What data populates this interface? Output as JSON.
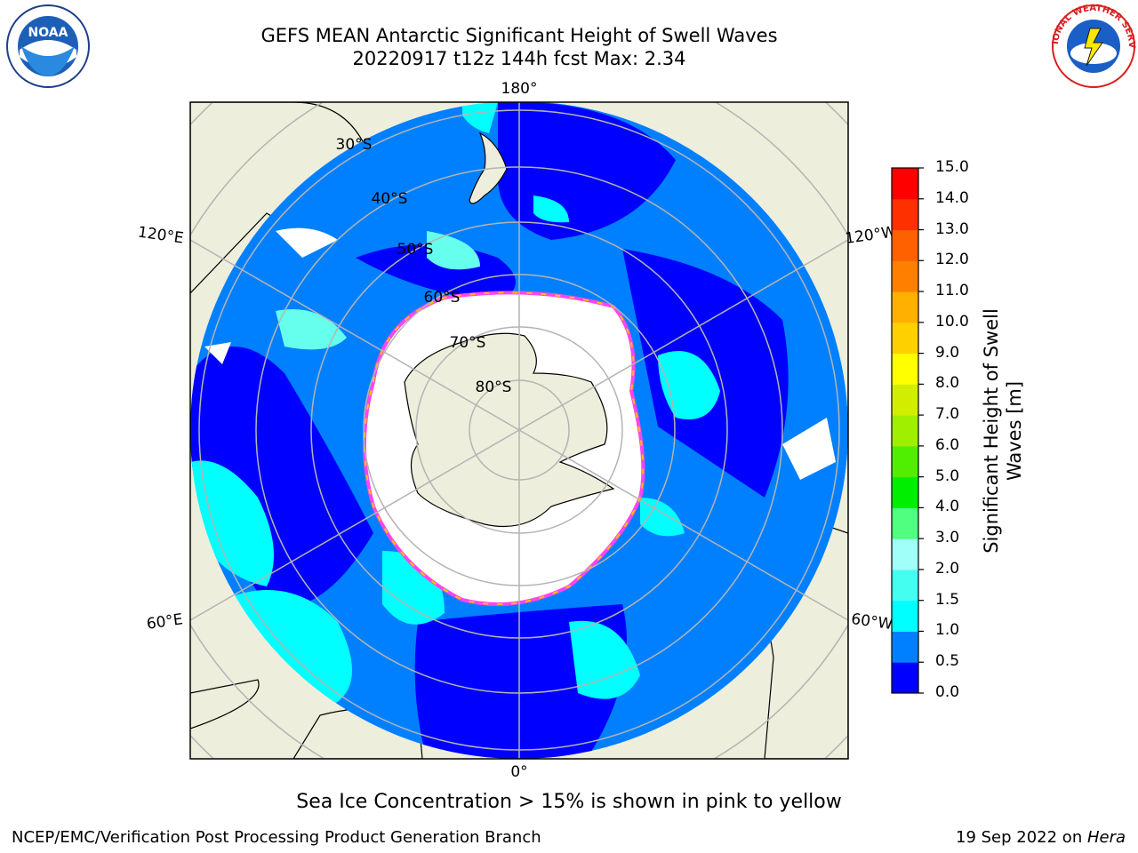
{
  "title": {
    "line1": "GEFS MEAN Antarctic Significant Height of Swell Waves",
    "line2": "20220917 t12z 144h fcst   Max: 2.34"
  },
  "logos": {
    "left": "NOAA",
    "right": "NATIONAL WEATHER SERVICE"
  },
  "map": {
    "projection": "south-polar-stereographic",
    "longitude_labels": [
      "180°",
      "120°E",
      "120°W",
      "60°E",
      "60°W",
      "0°"
    ],
    "latitude_labels": [
      "30°S",
      "40°S",
      "50°S",
      "60°S",
      "70°S",
      "80°S"
    ],
    "colors": {
      "ocean_deep": "#0000ff",
      "ocean_mid": "#0080ff",
      "ocean_swell": "#00ffff",
      "ocean_light": "#66ffee",
      "sea_ice": "#ffffff",
      "ice_edge_pink": "#ff44ee",
      "ice_edge_yellow": "#ffc000",
      "land": "#eeeedc",
      "grid": "#b4b4b4"
    }
  },
  "colorbar": {
    "label_line1": "Significant Height of Swell",
    "label_line2": "Waves [m]",
    "ticks": [
      "0.0",
      "0.5",
      "1.0",
      "1.5",
      "2.0",
      "3.0",
      "4.0",
      "5.0",
      "6.0",
      "7.0",
      "8.0",
      "9.0",
      "10.0",
      "11.0",
      "12.0",
      "13.0",
      "14.0",
      "15.0"
    ],
    "colors": [
      "#0000ff",
      "#0080ff",
      "#00ffff",
      "#44fff0",
      "#a0fff8",
      "#50ff80",
      "#00ee00",
      "#50ee00",
      "#a0ee00",
      "#d2ee00",
      "#ffff00",
      "#ffd000",
      "#ffb000",
      "#ff8000",
      "#ff6000",
      "#ff3000",
      "#ff0000"
    ]
  },
  "note": "Sea Ice Concentration > 15% is shown in pink to yellow",
  "footer": {
    "left": "NCEP/EMC/Verification Post Processing Product Generation Branch",
    "right_prefix": "19 Sep 2022 on ",
    "right_italic": "Hera"
  }
}
